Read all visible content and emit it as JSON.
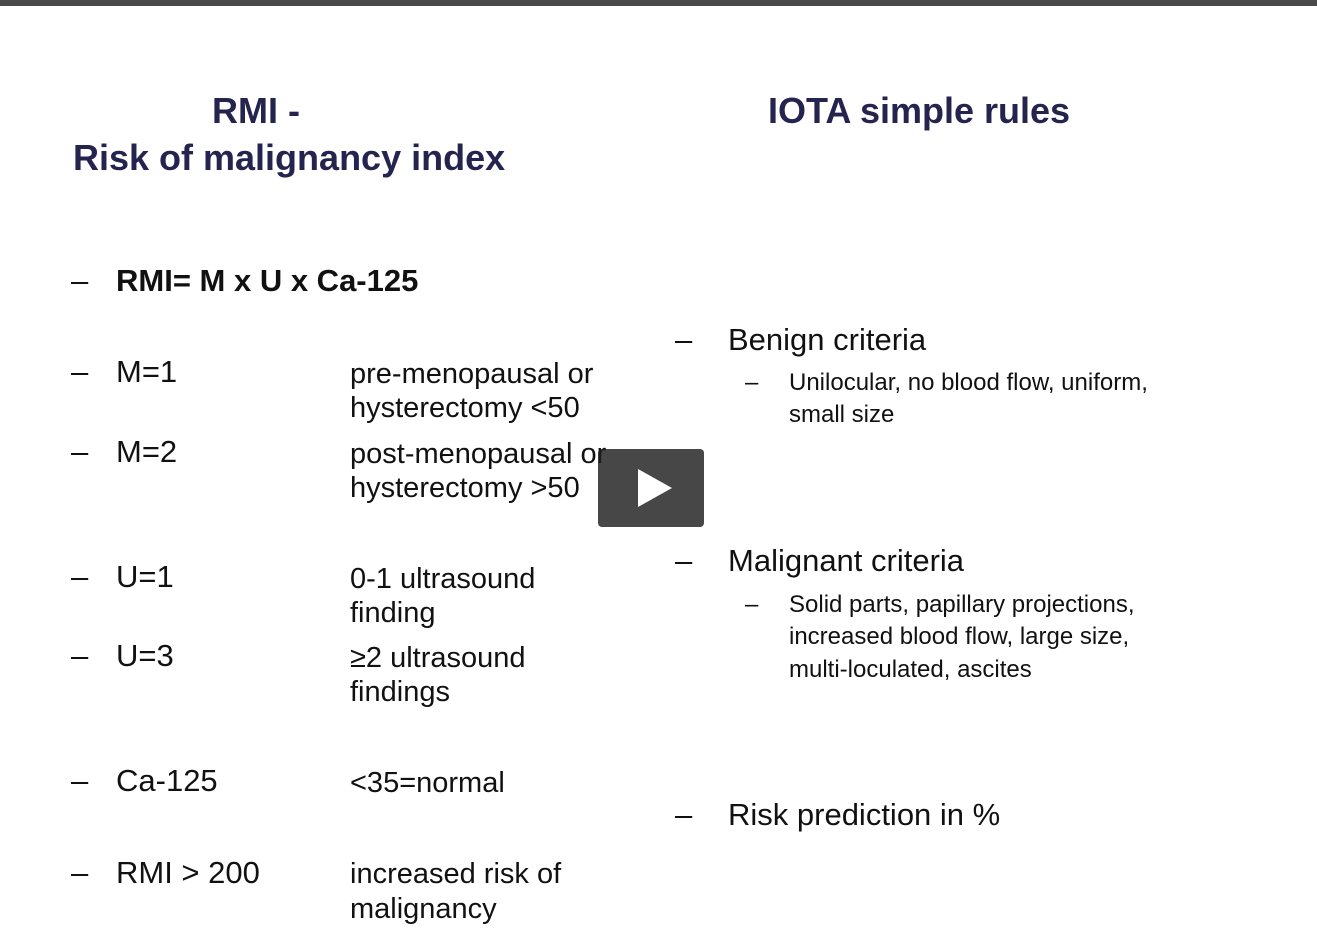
{
  "slide": {
    "rmi_title_line1": "RMI -",
    "rmi_title_line2": "Risk of malignancy index",
    "iota_title": "IOTA simple rules",
    "dash": "–",
    "rmi": {
      "formula": "RMI= M x U x Ca-125",
      "rows": [
        {
          "label": "M=1",
          "desc1": "pre-menopausal or",
          "desc2": "hysterectomy <50"
        },
        {
          "label": "M=2",
          "desc1": "post-menopausal or",
          "desc2": "hysterectomy >50"
        },
        {
          "label": "U=1",
          "desc1": "0-1 ultrasound",
          "desc2": "finding"
        },
        {
          "label": "U=3",
          "desc1": "≥2 ultrasound",
          "desc2": "findings"
        },
        {
          "label": "Ca-125",
          "desc1": "<35=normal",
          "desc2": ""
        },
        {
          "label": "RMI > 200",
          "desc1": "increased risk of",
          "desc2": "malignancy"
        }
      ]
    },
    "iota": {
      "benign_heading": "Benign criteria",
      "benign_lines": [
        "Unilocular, no blood flow, uniform,",
        "small size"
      ],
      "malignant_heading": "Malignant criteria",
      "malignant_lines": [
        "Solid parts, papillary projections,",
        "increased blood flow, large size,",
        "multi-loculated, ascites"
      ],
      "risk_heading": "Risk prediction in %"
    }
  },
  "player": {
    "play_icon": "play-icon",
    "overlay_color": "#1e1e1e"
  }
}
